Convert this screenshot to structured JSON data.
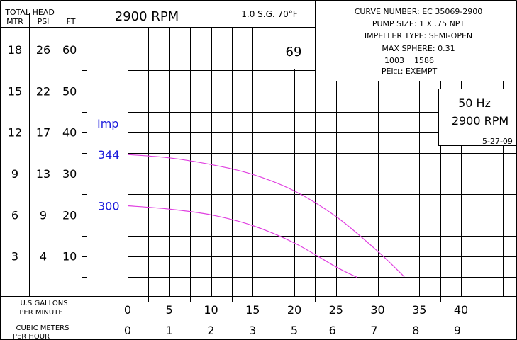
{
  "header": {
    "total_head_label": "TOTAL HEAD",
    "col_mtr": "MTR",
    "col_psi": "PSI",
    "col_ft": "FT",
    "rpm": "2900 RPM",
    "sg_temp": "1.0 S.G.  70°F"
  },
  "info_box": {
    "curve_number": "CURVE NUMBER:  EC 35069-2900",
    "pump_size": "PUMP SIZE: 1 X .75 NPT",
    "impeller_type": "IMPELLER TYPE:  SEMI-OPEN",
    "max_sphere": "MAX SPHERE:  0.31",
    "codes": "1003    1586",
    "pei_prefix": "PEI",
    "pei_sub": "CL",
    "pei_value": ": EXEMPT"
  },
  "efficiency_label": "69",
  "freq_box": {
    "freq": "50 Hz",
    "rpm": "2900 RPM"
  },
  "date_code": "5-27-09",
  "impeller_label": "Imp",
  "bottom": {
    "gpm_label_1": "U.S GALLONS",
    "gpm_label_2": "PER MINUTE",
    "cmh_label_1": "CUBIC METERS",
    "cmh_label_2": "PER HOUR"
  },
  "chart_data": {
    "type": "line",
    "x_unit": "U.S gallons per minute",
    "y_unit": "feet of head",
    "xlim": [
      0,
      40
    ],
    "ylim": [
      0,
      60
    ],
    "x_ticks": [
      0,
      5,
      10,
      15,
      20,
      25,
      30,
      35,
      40
    ],
    "cmh_ticks": [
      0,
      1,
      2,
      3,
      5,
      6,
      7,
      8,
      9
    ],
    "head_rows": [
      {
        "mtr": "18",
        "psi": "26",
        "ft": "60",
        "ft_value": 60
      },
      {
        "mtr": "15",
        "psi": "22",
        "ft": "50",
        "ft_value": 50
      },
      {
        "mtr": "12",
        "psi": "17",
        "ft": "40",
        "ft_value": 40
      },
      {
        "mtr": "9",
        "psi": "13",
        "ft": "30",
        "ft_value": 30
      },
      {
        "mtr": "6",
        "psi": "9",
        "ft": "20",
        "ft_value": 20
      },
      {
        "mtr": "3",
        "psi": "4",
        "ft": "10",
        "ft_value": 10
      }
    ],
    "series": [
      {
        "name": "344",
        "color": "#e040e0",
        "points": [
          [
            0,
            34.6
          ],
          [
            5,
            33.8
          ],
          [
            10,
            32.2
          ],
          [
            15,
            29.8
          ],
          [
            20,
            25.8
          ],
          [
            25,
            19.6
          ],
          [
            30,
            11.2
          ],
          [
            33.2,
            5
          ]
        ]
      },
      {
        "name": "300",
        "color": "#e040e0",
        "points": [
          [
            0,
            22.2
          ],
          [
            5,
            21.4
          ],
          [
            10,
            20.0
          ],
          [
            15,
            17.4
          ],
          [
            20,
            13.2
          ],
          [
            25,
            7.4
          ],
          [
            27.5,
            4.9
          ]
        ]
      }
    ],
    "label_color": "#1a1adc"
  }
}
